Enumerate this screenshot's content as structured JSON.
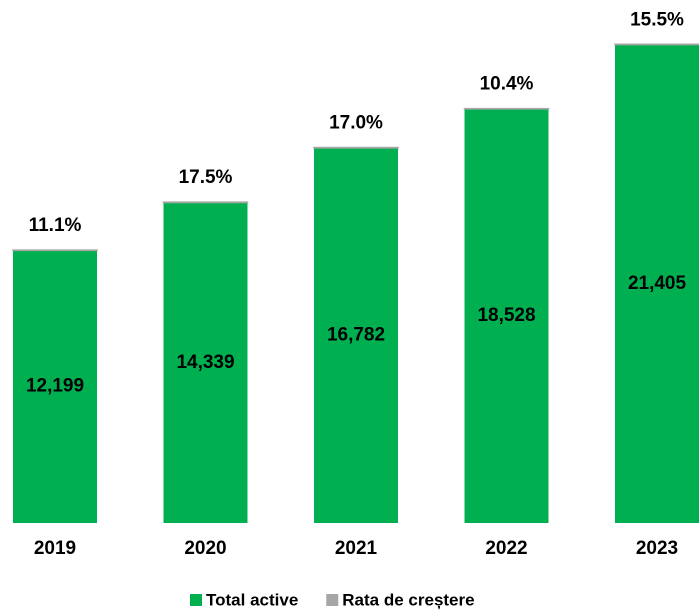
{
  "chart_data": {
    "type": "bar",
    "stacked": true,
    "categories": [
      "2019",
      "2020",
      "2021",
      "2022",
      "2023"
    ],
    "ylim": [
      0,
      23400
    ],
    "series": [
      {
        "name": "Total active",
        "color": "#00b050",
        "values": [
          12199,
          14339,
          16782,
          18528,
          21405
        ],
        "value_labels": [
          "12,199",
          "14,339",
          "16,782",
          "18,528",
          "21,405"
        ]
      },
      {
        "name": "Rata de creștere",
        "color": "#a6a6a6",
        "values": [
          11.1,
          17.5,
          17.0,
          10.4,
          15.5
        ],
        "value_labels": [
          "11.1%",
          "17.5%",
          "17.0%",
          "10.4%",
          "15.5%"
        ]
      }
    ]
  }
}
